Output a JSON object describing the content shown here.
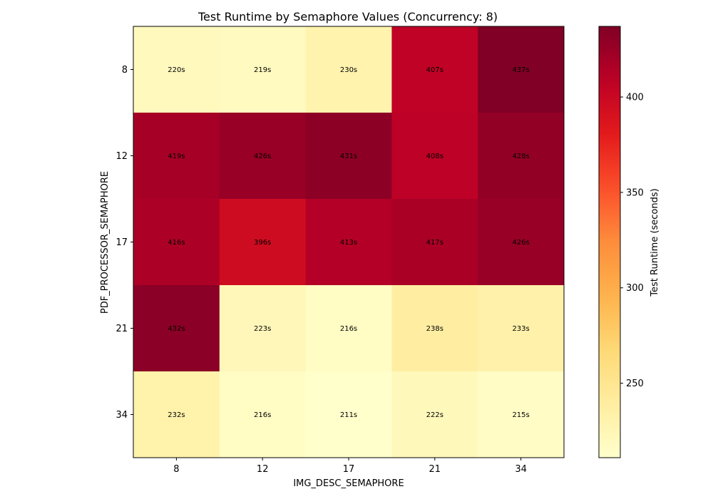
{
  "chart_data": {
    "type": "heatmap",
    "title": "Test Runtime by Semaphore Values (Concurrency: 8)",
    "xlabel": "IMG_DESC_SEMAPHORE",
    "ylabel": "PDF_PROCESSOR_SEMAPHORE",
    "x_categories": [
      "8",
      "12",
      "17",
      "21",
      "34"
    ],
    "y_categories": [
      "8",
      "12",
      "17",
      "21",
      "34"
    ],
    "values": [
      [
        220,
        219,
        230,
        407,
        437
      ],
      [
        419,
        426,
        431,
        408,
        428
      ],
      [
        416,
        396,
        413,
        417,
        426
      ],
      [
        432,
        223,
        216,
        238,
        233
      ],
      [
        232,
        216,
        211,
        222,
        215
      ]
    ],
    "cell_labels": [
      [
        "220s",
        "219s",
        "230s",
        "407s",
        "437s"
      ],
      [
        "419s",
        "426s",
        "431s",
        "408s",
        "428s"
      ],
      [
        "416s",
        "396s",
        "413s",
        "417s",
        "426s"
      ],
      [
        "432s",
        "223s",
        "216s",
        "238s",
        "233s"
      ],
      [
        "232s",
        "216s",
        "211s",
        "222s",
        "215s"
      ]
    ],
    "colormap": "YlOrRd",
    "vmin": 211,
    "vmax": 437,
    "colorbar": {
      "label": "Test Runtime (seconds)",
      "ticks": [
        250,
        300,
        350,
        400
      ]
    },
    "grid": false
  }
}
